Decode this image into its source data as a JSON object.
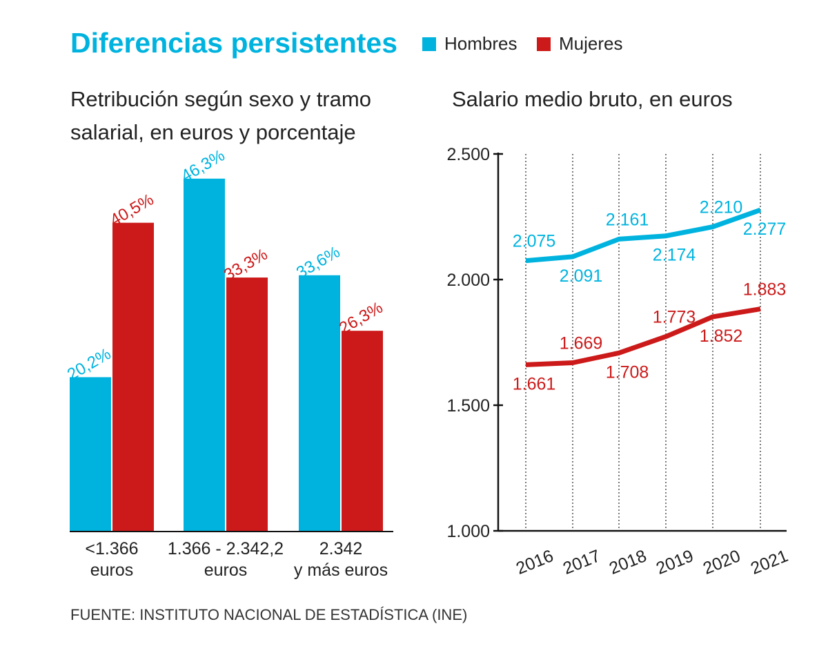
{
  "header": {
    "title": "Diferencias persistentes",
    "legend": [
      {
        "label": "Hombres",
        "color": "#00b3df"
      },
      {
        "label": "Mujeres",
        "color": "#cc1a1a"
      }
    ]
  },
  "colors": {
    "title": "#00b3df",
    "hombres": "#00b3df",
    "mujeres": "#cc1a1a",
    "text": "#222222"
  },
  "source": "FUENTE: INSTITUTO NACIONAL DE ESTADÍSTICA (INE)",
  "chart_data": [
    {
      "type": "bar",
      "title_lines": [
        "Retribución según sexo y tramo",
        "salarial, en euros y porcentaje"
      ],
      "categories": [
        {
          "lines": [
            "<1.366",
            "euros"
          ]
        },
        {
          "lines": [
            "1.366 - 2.342,2",
            "euros"
          ]
        },
        {
          "lines": [
            "2.342",
            "y más euros"
          ]
        }
      ],
      "series": [
        {
          "name": "Hombres",
          "values": [
            20.2,
            46.3,
            33.6
          ],
          "labels": [
            "20,2%",
            "46,3%",
            "33,6%"
          ]
        },
        {
          "name": "Mujeres",
          "values": [
            40.5,
            33.3,
            26.3
          ],
          "labels": [
            "40,5%",
            "33,3%",
            "26,3%"
          ]
        }
      ],
      "ylim": [
        0,
        50
      ],
      "grid": false
    },
    {
      "type": "line",
      "title": "Salario medio bruto, en euros",
      "x": [
        "2016",
        "2017",
        "2018",
        "2019",
        "2020",
        "2021"
      ],
      "series": [
        {
          "name": "Hombres",
          "values": [
            2075,
            2091,
            2161,
            2174,
            2210,
            2277
          ],
          "labels": [
            "2.075",
            "2.091",
            "2.161",
            "2.174",
            "2.210",
            "2.277"
          ]
        },
        {
          "name": "Mujeres",
          "values": [
            1661,
            1669,
            1708,
            1773,
            1852,
            1883
          ],
          "labels": [
            "1.661",
            "1.669",
            "1.708",
            "1.773",
            "1.852",
            "1.883"
          ]
        }
      ],
      "yticks": [
        {
          "value": 1000,
          "label": "1.000"
        },
        {
          "value": 1500,
          "label": "1.500"
        },
        {
          "value": 2000,
          "label": "2.000"
        },
        {
          "value": 2500,
          "label": "2.500"
        }
      ],
      "ylim": [
        1000,
        2500
      ],
      "grid": "vertical dotted"
    }
  ]
}
